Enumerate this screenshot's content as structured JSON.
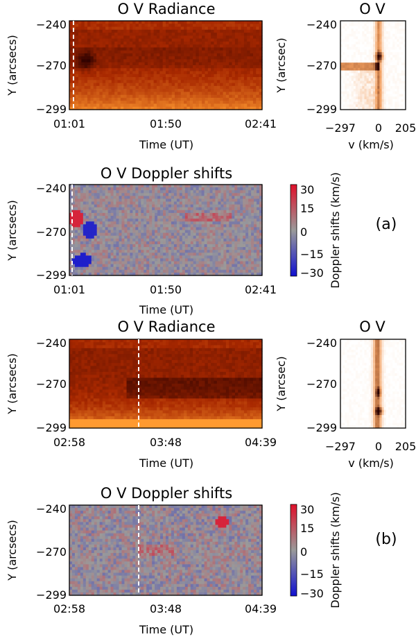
{
  "chart_data": [
    {
      "id": "a_radiance",
      "type": "heatmap",
      "title": "O V Radiance",
      "xlabel": "Time (UT)",
      "ylabel": "Y (arcsecs)",
      "x_ticks": [
        "01:01",
        "01:50",
        "02:41"
      ],
      "y_ticks": [
        "-240",
        "-270",
        "-299"
      ],
      "ylim": [
        -299,
        -240
      ],
      "colormap": "heat",
      "marker_time": "01:01",
      "features": [
        {
          "desc": "dark region",
          "time": "01:05",
          "y": -268
        }
      ]
    },
    {
      "id": "a_profile",
      "type": "heatmap",
      "title": "O V",
      "xlabel": "v (km/s)",
      "ylabel": "Y (arcsec)",
      "x_ticks": [
        "-297",
        "0",
        "205"
      ],
      "y_ticks": [
        "-240",
        "-270",
        "-299"
      ],
      "xlim": [
        -297,
        205
      ],
      "ylim": [
        -299,
        -240
      ],
      "colormap": "heat-inverted"
    },
    {
      "id": "a_doppler",
      "type": "heatmap",
      "title": "O V Doppler shifts",
      "xlabel": "Time (UT)",
      "ylabel": "Y (arcsecs)",
      "x_ticks": [
        "01:01",
        "01:50",
        "02:41"
      ],
      "y_ticks": [
        "-240",
        "-270",
        "-299"
      ],
      "ylim": [
        -299,
        -240
      ],
      "colorbar_label": "Doppler shifts (km/s)",
      "colorbar_ticks": [
        "30",
        "15",
        "0",
        "-15",
        "-30"
      ],
      "zlim": [
        -30,
        30
      ],
      "marker_time": "01:01",
      "panel_label": "(a)"
    },
    {
      "id": "b_radiance",
      "type": "heatmap",
      "title": "O V Radiance",
      "xlabel": "Time (UT)",
      "ylabel": "Y (arcsecs)",
      "x_ticks": [
        "02:58",
        "03:48",
        "04:39"
      ],
      "y_ticks": [
        "-240",
        "-270",
        "-299"
      ],
      "ylim": [
        -299,
        -240
      ],
      "colormap": "heat",
      "marker_time": "03:30"
    },
    {
      "id": "b_profile",
      "type": "heatmap",
      "title": "O V",
      "xlabel": "v (km/s)",
      "ylabel": "Y (arcsec)",
      "x_ticks": [
        "-297",
        "0",
        "205"
      ],
      "y_ticks": [
        "-240",
        "-270",
        "-299"
      ],
      "xlim": [
        -297,
        205
      ],
      "ylim": [
        -299,
        -240
      ],
      "colormap": "heat-inverted"
    },
    {
      "id": "b_doppler",
      "type": "heatmap",
      "title": "O V Doppler shifts",
      "xlabel": "Time (UT)",
      "ylabel": "Y (arcsecs)",
      "x_ticks": [
        "02:58",
        "03:48",
        "04:39"
      ],
      "y_ticks": [
        "-240",
        "-270",
        "-299"
      ],
      "ylim": [
        -299,
        -240
      ],
      "colorbar_label": "Doppler shifts (km/s)",
      "colorbar_ticks": [
        "30",
        "15",
        "0",
        "-15",
        "-30"
      ],
      "zlim": [
        -30,
        30
      ],
      "marker_time": "03:30",
      "panel_label": "(b)"
    }
  ],
  "colors": {
    "radiance_dark": "#2a0000",
    "radiance_mid": "#a82800",
    "radiance_bright": "#ff9a30",
    "doppler_red": "#e0102a",
    "doppler_gray": "#9a9a9a",
    "doppler_blue": "#1010d0",
    "marker": "#ffffff"
  }
}
